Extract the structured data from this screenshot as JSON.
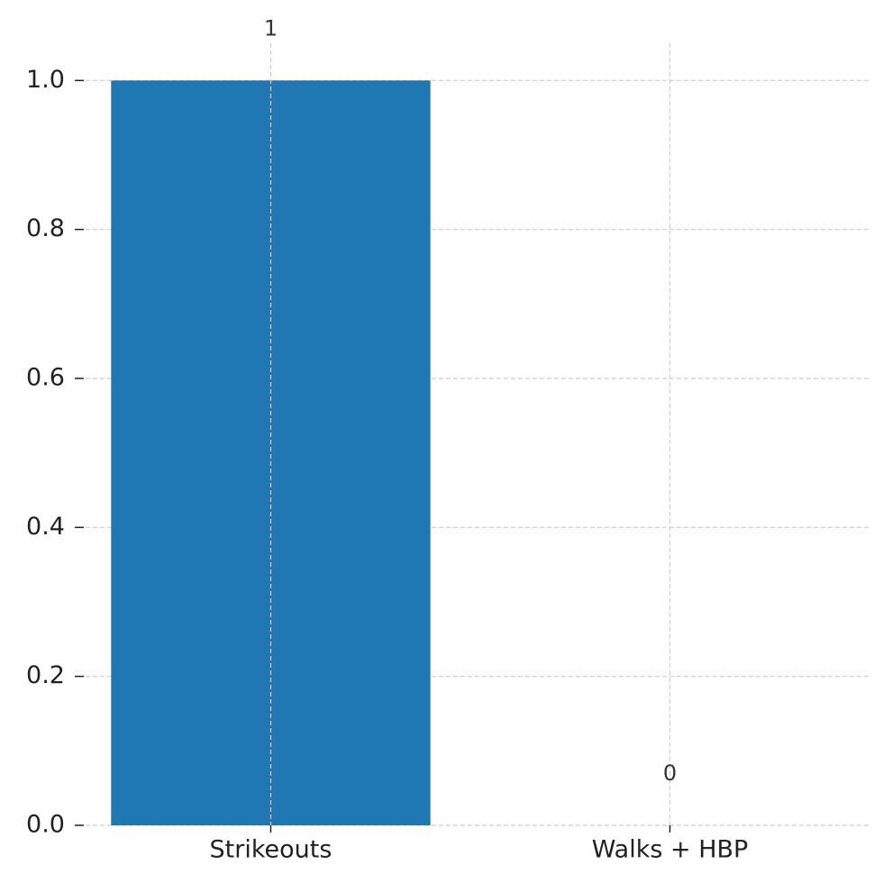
{
  "chart_data": {
    "type": "bar",
    "categories": [
      "Strikeouts",
      "Walks + HBP"
    ],
    "values": [
      1,
      0
    ],
    "color": "#1f77b4",
    "ylim": [
      0,
      1.05
    ],
    "yticks": [
      {
        "value": 0,
        "label": "0.0"
      },
      {
        "value": 0.2,
        "label": "0.2"
      },
      {
        "value": 0.4,
        "label": "0.4"
      },
      {
        "value": 0.6,
        "label": "0.6"
      },
      {
        "value": 0.8,
        "label": "0.8"
      },
      {
        "value": 1.0,
        "label": "1.0"
      }
    ],
    "grid": true
  }
}
